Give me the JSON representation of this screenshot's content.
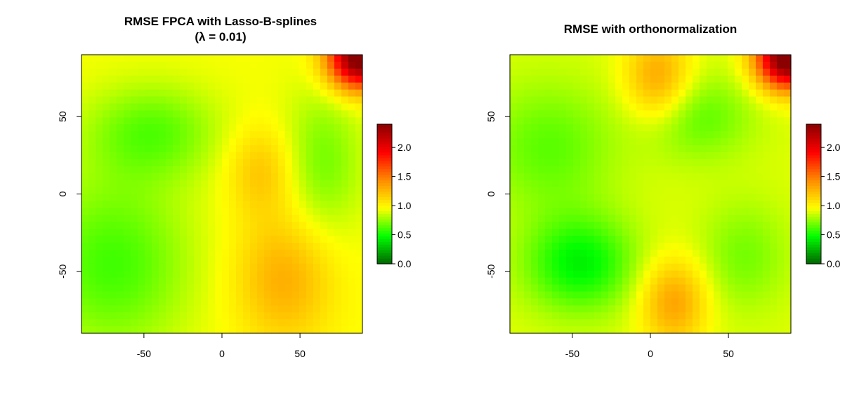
{
  "figure": {
    "panels": [
      {
        "title_lines": [
          "RMSE FPCA with Lasso-B-splines",
          "(λ = 0.01)"
        ]
      },
      {
        "title_lines": [
          "RMSE with orthonormalization"
        ]
      }
    ]
  },
  "chart_data": [
    {
      "type": "heatmap",
      "title": "RMSE FPCA with Lasso-B-splines (λ = 0.01)",
      "xlabel": "",
      "ylabel": "",
      "xlim": [
        -90,
        90
      ],
      "ylim": [
        -90,
        90
      ],
      "x_ticks": [
        -50,
        0,
        50
      ],
      "y_ticks": [
        -50,
        0,
        50
      ],
      "colorbar": {
        "range": [
          0,
          2.4
        ],
        "ticks": [
          "0.0",
          "0.5",
          "1.0",
          "1.5",
          "2.0"
        ]
      },
      "colormap": [
        "#006400",
        "#00ff00",
        "#ffff00",
        "#ff8c00",
        "#ff0000",
        "#8b0000"
      ],
      "value_features": {
        "baseline": 0.95,
        "blobs": [
          {
            "x": -45,
            "y": 40,
            "sx": 30,
            "sy": 22,
            "value": -0.3
          },
          {
            "x": -70,
            "y": -45,
            "sx": 35,
            "sy": 40,
            "value": -0.35
          },
          {
            "x": 65,
            "y": 20,
            "sx": 18,
            "sy": 35,
            "value": -0.25
          },
          {
            "x": 40,
            "y": -55,
            "sx": 22,
            "sy": 30,
            "value": 0.35
          },
          {
            "x": 25,
            "y": 15,
            "sx": 15,
            "sy": 20,
            "value": 0.25
          },
          {
            "x": 88,
            "y": 88,
            "sx": 14,
            "sy": 14,
            "value": 1.6
          }
        ]
      }
    },
    {
      "type": "heatmap",
      "title": "RMSE with orthonormalization",
      "xlabel": "",
      "ylabel": "",
      "xlim": [
        -90,
        90
      ],
      "ylim": [
        -90,
        90
      ],
      "x_ticks": [
        -50,
        0,
        50
      ],
      "y_ticks": [
        -50,
        0,
        50
      ],
      "colorbar": {
        "range": [
          0,
          2.4
        ],
        "ticks": [
          "0.0",
          "0.5",
          "1.0",
          "1.5",
          "2.0"
        ]
      },
      "colormap": [
        "#006400",
        "#00ff00",
        "#ffff00",
        "#ff8c00",
        "#ff0000",
        "#8b0000"
      ],
      "value_features": {
        "baseline": 0.9,
        "blobs": [
          {
            "x": -45,
            "y": -45,
            "sx": 25,
            "sy": 22,
            "value": -0.45
          },
          {
            "x": -65,
            "y": 30,
            "sx": 30,
            "sy": 30,
            "value": -0.25
          },
          {
            "x": 30,
            "y": 50,
            "sx": 25,
            "sy": 20,
            "value": -0.25
          },
          {
            "x": 5,
            "y": 75,
            "sx": 15,
            "sy": 20,
            "value": 0.45
          },
          {
            "x": 15,
            "y": -70,
            "sx": 15,
            "sy": 20,
            "value": 0.45
          },
          {
            "x": 60,
            "y": -40,
            "sx": 20,
            "sy": 25,
            "value": -0.2
          },
          {
            "x": 88,
            "y": 88,
            "sx": 14,
            "sy": 14,
            "value": 1.7
          }
        ]
      }
    }
  ]
}
